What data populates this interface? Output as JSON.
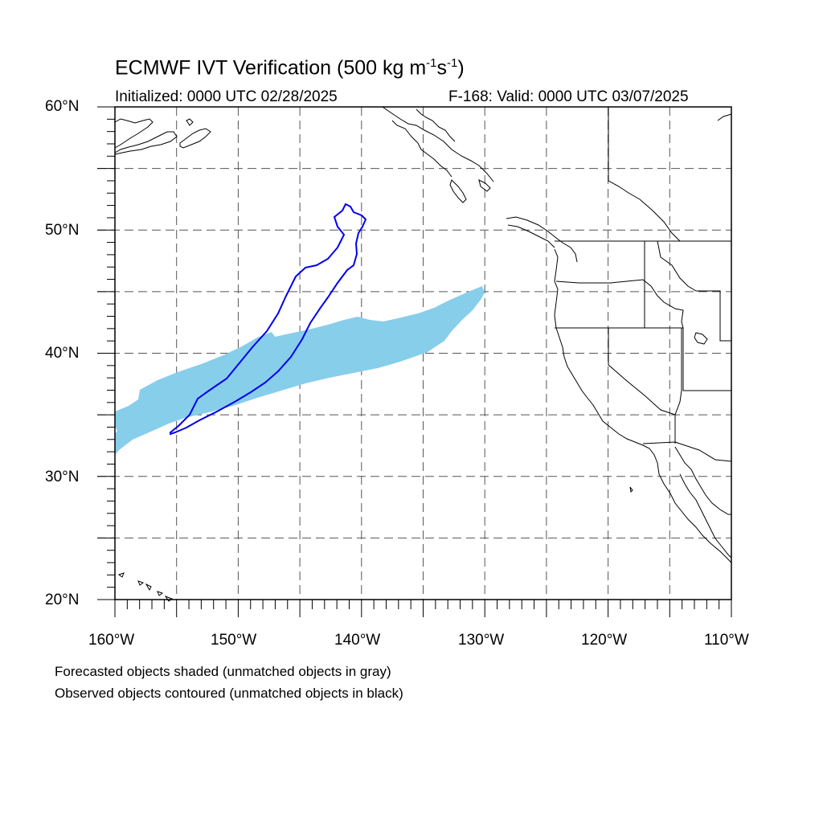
{
  "title": {
    "main": "ECMWF IVT Verification (500 kg m",
    "exp1": "-1",
    "mid": "s",
    "exp2": "-1",
    "close": ")"
  },
  "initialized": "Initialized: 0000 UTC 02/28/2025",
  "valid": "F-168: Valid: 0000 UTC 03/07/2025",
  "lat_labels": [
    "60°N",
    "50°N",
    "40°N",
    "30°N",
    "20°N"
  ],
  "lon_labels": [
    "160°W",
    "150°W",
    "140°W",
    "130°W",
    "120°W",
    "110°W"
  ],
  "notes": [
    "Forecasted objects shaded (unmatched objects in gray)",
    "Observed objects contoured (unmatched objects in black)"
  ],
  "map": {
    "lon_range": [
      -160,
      -110
    ],
    "lat_range": [
      20,
      60
    ],
    "grid_lon": [
      -155,
      -150,
      -145,
      -140,
      -135,
      -130,
      -125,
      -120,
      -115
    ],
    "grid_lat": [
      25,
      30,
      35,
      40,
      45,
      50,
      55
    ],
    "forecast_fill_color": "#87ceeb",
    "observed_contour_color": "#0000ee",
    "coast_color": "#000000"
  }
}
